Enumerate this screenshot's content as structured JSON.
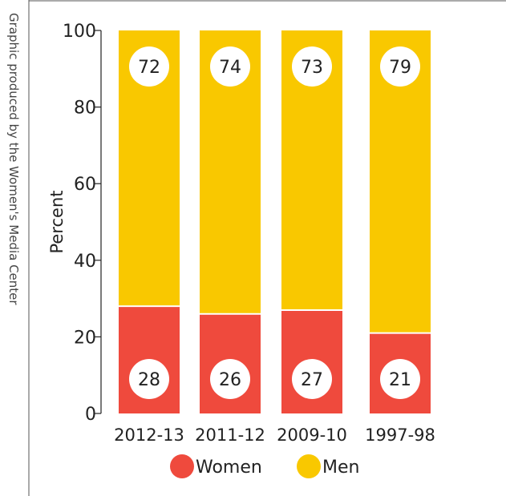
{
  "credit": "Graphic produced by the Women's Media Center",
  "chart_data": {
    "type": "bar",
    "stacked": true,
    "ylabel": "Percent",
    "xlabel": "",
    "ylim": [
      0,
      100
    ],
    "yticks": [
      0,
      20,
      40,
      60,
      80,
      100
    ],
    "categories": [
      "2012-13",
      "2011-12",
      "2009-10",
      "1997-98"
    ],
    "series": [
      {
        "name": "Women",
        "color": "#ef4a3d",
        "values": [
          28,
          26,
          27,
          21
        ]
      },
      {
        "name": "Men",
        "color": "#f9c800",
        "values": [
          72,
          74,
          73,
          79
        ]
      }
    ],
    "legend": {
      "position": "bottom"
    },
    "grid": false
  }
}
